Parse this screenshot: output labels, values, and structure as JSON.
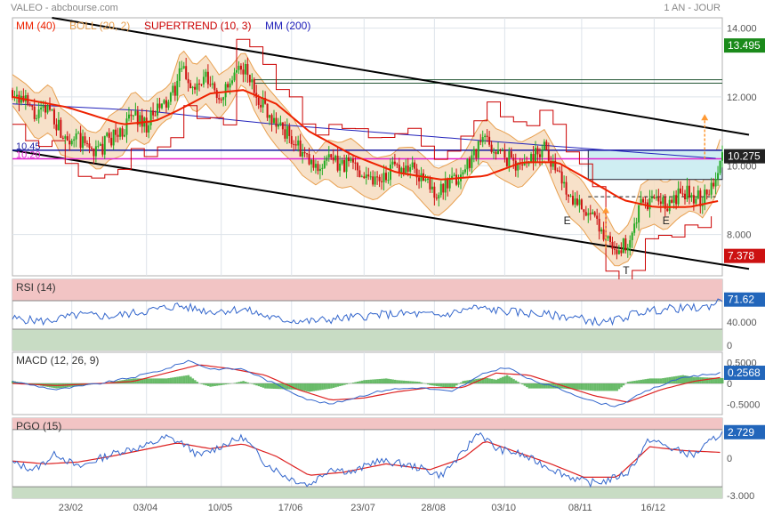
{
  "header": {
    "title": "VALEO - abcbourse.com",
    "period": "1 AN - JOUR"
  },
  "colors": {
    "price_up": "#22aa22",
    "price_down": "#cc1111",
    "mm40": "#ee2200",
    "mm200": "#2222bb",
    "supertrend": "#cc0000",
    "supertrend_up": "#1a8a1a",
    "bollinger": "#e8a050",
    "bollinger_fill": "#f6dcc0",
    "channel": "#000000",
    "level_1045": "#1a1aa0",
    "level_1020": "#e020d0",
    "target_arrow": "#ff9933",
    "rsi_line": "#3366cc",
    "macd_line": "#3366cc",
    "macd_signal": "#dd2222",
    "macd_hist": "#44aa44",
    "pgo_line": "#3366cc",
    "pgo_signal": "#dd2222",
    "zone_over": "#f2c4c4",
    "zone_under": "#c8dcc4",
    "badge_green": "#1a8a1a",
    "badge_red": "#cc1111",
    "badge_blue": "#2266bb",
    "badge_dark": "#222222"
  },
  "chart_data": [
    {
      "type": "line",
      "panel": "price",
      "legend": [
        "MM (40)",
        "BOLL (20, 2)",
        "SUPERTREND (10, 3)",
        "MM (200)"
      ],
      "x_ticks": [
        "23/02",
        "03/04",
        "10/05",
        "17/06",
        "23/07",
        "28/08",
        "03/10",
        "08/11",
        "16/12"
      ],
      "y_ticks": [
        14,
        12,
        10,
        8
      ],
      "y_tick_labels": [
        "14.000",
        "12.000",
        "10.000",
        "8.000"
      ],
      "ylim": [
        6.8,
        14.3
      ],
      "badges": [
        {
          "label": "13.495",
          "value": 13.495,
          "color": "badge_green"
        },
        {
          "label": "10.275",
          "value": 10.275,
          "color": "badge_dark"
        },
        {
          "label": "7.378",
          "value": 7.378,
          "color": "badge_red"
        }
      ],
      "levels": [
        {
          "label": "10.45",
          "value": 10.45,
          "color": "level_1045"
        },
        {
          "label": "10.20",
          "value": 10.2,
          "color": "level_1020"
        }
      ],
      "pattern_labels": [
        "E",
        "T",
        "E"
      ],
      "close_series": [
        [
          0,
          12.2
        ],
        [
          6,
          11.8
        ],
        [
          11,
          11.4
        ],
        [
          17,
          11.7
        ],
        [
          22,
          11.0
        ],
        [
          28,
          10.8
        ],
        [
          33,
          10.6
        ],
        [
          39,
          10.4
        ],
        [
          44,
          10.8
        ],
        [
          50,
          11.0
        ],
        [
          55,
          11.5
        ],
        [
          61,
          11.2
        ],
        [
          66,
          11.6
        ],
        [
          72,
          11.9
        ],
        [
          77,
          12.8
        ],
        [
          83,
          12.2
        ],
        [
          88,
          12.5
        ],
        [
          94,
          12.0
        ],
        [
          99,
          12.3
        ],
        [
          105,
          12.9
        ],
        [
          110,
          12.2
        ],
        [
          116,
          11.6
        ],
        [
          121,
          11.2
        ],
        [
          127,
          10.8
        ],
        [
          132,
          10.3
        ],
        [
          138,
          9.9
        ],
        [
          143,
          10.2
        ],
        [
          149,
          10.0
        ],
        [
          154,
          10.1
        ],
        [
          160,
          9.8
        ],
        [
          165,
          9.6
        ],
        [
          171,
          9.8
        ],
        [
          176,
          10.0
        ],
        [
          182,
          9.9
        ],
        [
          187,
          9.6
        ],
        [
          193,
          9.2
        ],
        [
          198,
          9.4
        ],
        [
          204,
          9.7
        ],
        [
          209,
          10.3
        ],
        [
          215,
          10.8
        ],
        [
          220,
          10.4
        ],
        [
          226,
          10.2
        ],
        [
          231,
          10.0
        ],
        [
          237,
          10.3
        ],
        [
          242,
          10.6
        ],
        [
          248,
          9.8
        ],
        [
          253,
          9.2
        ],
        [
          259,
          8.9
        ],
        [
          264,
          8.4
        ],
        [
          270,
          8.0
        ],
        [
          275,
          7.5
        ],
        [
          281,
          7.8
        ],
        [
          286,
          8.8
        ],
        [
          292,
          9.0
        ],
        [
          297,
          8.8
        ],
        [
          303,
          9.1
        ],
        [
          308,
          9.2
        ],
        [
          314,
          9.0
        ],
        [
          319,
          9.6
        ],
        [
          323,
          10.275
        ]
      ],
      "mm40_series": [
        [
          0,
          12.0
        ],
        [
          25,
          11.7
        ],
        [
          50,
          11.2
        ],
        [
          65,
          11.3
        ],
        [
          75,
          11.6
        ],
        [
          90,
          12.1
        ],
        [
          105,
          12.2
        ],
        [
          120,
          11.8
        ],
        [
          135,
          11.0
        ],
        [
          155,
          10.3
        ],
        [
          175,
          9.8
        ],
        [
          195,
          9.6
        ],
        [
          215,
          9.7
        ],
        [
          232,
          10.1
        ],
        [
          248,
          10.1
        ],
        [
          262,
          9.6
        ],
        [
          278,
          9.0
        ],
        [
          292,
          8.8
        ],
        [
          308,
          8.8
        ],
        [
          323,
          9.0
        ]
      ],
      "mm200_series": [
        [
          0,
          11.8
        ],
        [
          60,
          11.6
        ],
        [
          120,
          11.2
        ],
        [
          180,
          10.9
        ],
        [
          240,
          10.6
        ],
        [
          323,
          10.2
        ]
      ]
    },
    {
      "type": "line",
      "panel": "rsi",
      "legend": [
        "RSI (14)"
      ],
      "value_label": "71.62",
      "value": 71.62,
      "y_tick_labels": [
        "40.000",
        "0"
      ],
      "ylim": [
        0,
        100
      ],
      "over_level": 70,
      "under_level": 30,
      "series": [
        [
          0,
          45
        ],
        [
          15,
          41
        ],
        [
          30,
          50
        ],
        [
          45,
          48
        ],
        [
          60,
          55
        ],
        [
          75,
          63
        ],
        [
          90,
          55
        ],
        [
          105,
          58
        ],
        [
          120,
          44
        ],
        [
          135,
          41
        ],
        [
          150,
          45
        ],
        [
          165,
          50
        ],
        [
          180,
          52
        ],
        [
          195,
          49
        ],
        [
          210,
          60
        ],
        [
          225,
          55
        ],
        [
          240,
          51
        ],
        [
          255,
          47
        ],
        [
          270,
          38
        ],
        [
          285,
          54
        ],
        [
          300,
          59
        ],
        [
          315,
          60
        ],
        [
          323,
          71.62
        ]
      ]
    },
    {
      "type": "line",
      "panel": "macd",
      "legend": [
        "MACD (12, 26, 9)"
      ],
      "value_label": "0.2568",
      "value": 0.2568,
      "y_tick_labels": [
        "0.5000",
        "0",
        "-0.5000"
      ],
      "ylim": [
        -0.75,
        0.75
      ],
      "macd": [
        [
          0,
          0.05
        ],
        [
          20,
          -0.15
        ],
        [
          40,
          0.0
        ],
        [
          55,
          0.15
        ],
        [
          70,
          0.35
        ],
        [
          80,
          0.55
        ],
        [
          90,
          0.35
        ],
        [
          105,
          0.35
        ],
        [
          115,
          0.1
        ],
        [
          125,
          -0.15
        ],
        [
          135,
          -0.4
        ],
        [
          145,
          -0.5
        ],
        [
          155,
          -0.35
        ],
        [
          170,
          -0.15
        ],
        [
          185,
          -0.1
        ],
        [
          200,
          -0.2
        ],
        [
          215,
          0.25
        ],
        [
          225,
          0.4
        ],
        [
          235,
          0.1
        ],
        [
          250,
          -0.15
        ],
        [
          265,
          -0.45
        ],
        [
          275,
          -0.55
        ],
        [
          290,
          -0.15
        ],
        [
          305,
          0.15
        ],
        [
          323,
          0.2568
        ]
      ],
      "signal": [
        [
          0,
          0.0
        ],
        [
          20,
          -0.05
        ],
        [
          40,
          0.0
        ],
        [
          55,
          0.05
        ],
        [
          70,
          0.25
        ],
        [
          85,
          0.45
        ],
        [
          100,
          0.35
        ],
        [
          115,
          0.2
        ],
        [
          130,
          -0.15
        ],
        [
          145,
          -0.4
        ],
        [
          160,
          -0.35
        ],
        [
          175,
          -0.2
        ],
        [
          190,
          -0.1
        ],
        [
          205,
          -0.1
        ],
        [
          220,
          0.25
        ],
        [
          235,
          0.2
        ],
        [
          250,
          -0.05
        ],
        [
          265,
          -0.3
        ],
        [
          280,
          -0.45
        ],
        [
          295,
          -0.15
        ],
        [
          310,
          0.05
        ],
        [
          323,
          0.15
        ]
      ]
    },
    {
      "type": "line",
      "panel": "pgo",
      "legend": [
        "PGO (15)"
      ],
      "value_label": "2.729",
      "value": 2.729,
      "y_tick_labels": [
        "0",
        "-3.000"
      ],
      "ylim": [
        -4.2,
        4.2
      ],
      "over_level": 3,
      "under_level": -3,
      "pgo": [
        [
          0,
          -0.5
        ],
        [
          10,
          -1.2
        ],
        [
          20,
          0.5
        ],
        [
          30,
          -1.0
        ],
        [
          40,
          0.0
        ],
        [
          50,
          0.8
        ],
        [
          60,
          1.2
        ],
        [
          70,
          2.2
        ],
        [
          78,
          1.5
        ],
        [
          85,
          0.2
        ],
        [
          95,
          1.3
        ],
        [
          105,
          2.2
        ],
        [
          115,
          -0.5
        ],
        [
          125,
          -2.0
        ],
        [
          135,
          -2.8
        ],
        [
          145,
          -1.0
        ],
        [
          155,
          -1.5
        ],
        [
          165,
          -0.3
        ],
        [
          175,
          -0.5
        ],
        [
          185,
          -1.0
        ],
        [
          195,
          -1.8
        ],
        [
          205,
          0.5
        ],
        [
          212,
          2.8
        ],
        [
          220,
          1.0
        ],
        [
          230,
          0.5
        ],
        [
          240,
          -0.5
        ],
        [
          252,
          -1.8
        ],
        [
          262,
          -2.6
        ],
        [
          270,
          -2.4
        ],
        [
          280,
          -1.5
        ],
        [
          290,
          2.0
        ],
        [
          300,
          1.0
        ],
        [
          310,
          0.3
        ],
        [
          323,
          2.729
        ]
      ],
      "signal": [
        [
          0,
          -0.3
        ],
        [
          15,
          -0.6
        ],
        [
          30,
          -0.4
        ],
        [
          45,
          0.2
        ],
        [
          60,
          0.9
        ],
        [
          75,
          1.6
        ],
        [
          90,
          1.0
        ],
        [
          105,
          1.5
        ],
        [
          120,
          0.2
        ],
        [
          135,
          -1.8
        ],
        [
          150,
          -1.5
        ],
        [
          170,
          -0.6
        ],
        [
          190,
          -1.2
        ],
        [
          205,
          0.0
        ],
        [
          215,
          1.8
        ],
        [
          230,
          0.6
        ],
        [
          245,
          -0.6
        ],
        [
          260,
          -2.0
        ],
        [
          275,
          -2.0
        ],
        [
          290,
          1.2
        ],
        [
          305,
          0.8
        ],
        [
          323,
          0.6
        ]
      ]
    }
  ]
}
